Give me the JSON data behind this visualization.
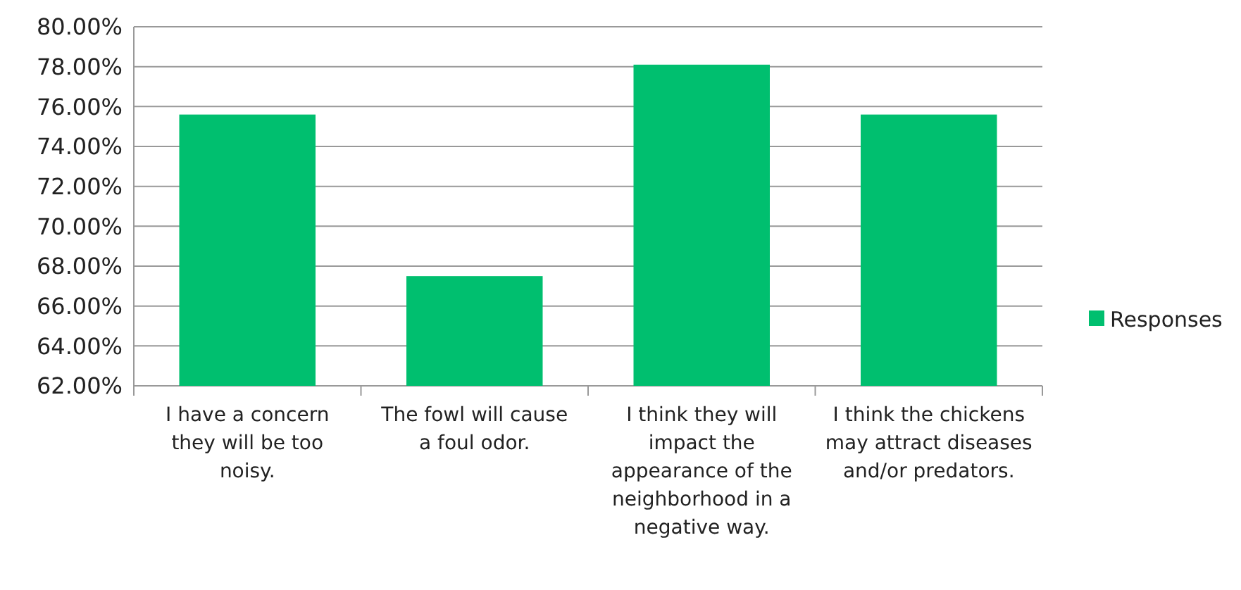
{
  "chart_data": {
    "type": "bar",
    "categories": [
      "I have a concern they will be too noisy.",
      "The fowl will cause a foul odor.",
      "I think they will impact the appearance of the neighborhood in a negative way.",
      "I think the chickens may attract diseases and/or predators."
    ],
    "series": [
      {
        "name": "Responses",
        "color": "#00bf6f",
        "values": [
          75.6,
          67.5,
          78.1,
          75.6
        ]
      }
    ],
    "ylim": [
      62,
      80
    ],
    "yticks": [
      {
        "value": 62,
        "label": "62.00%"
      },
      {
        "value": 64,
        "label": "64.00%"
      },
      {
        "value": 66,
        "label": "66.00%"
      },
      {
        "value": 68,
        "label": "68.00%"
      },
      {
        "value": 70,
        "label": "70.00%"
      },
      {
        "value": 72,
        "label": "72.00%"
      },
      {
        "value": 74,
        "label": "74.00%"
      },
      {
        "value": 76,
        "label": "76.00%"
      },
      {
        "value": 78,
        "label": "78.00%"
      },
      {
        "value": 80,
        "label": "80.00%"
      }
    ],
    "grid": "y",
    "legend": "right"
  }
}
